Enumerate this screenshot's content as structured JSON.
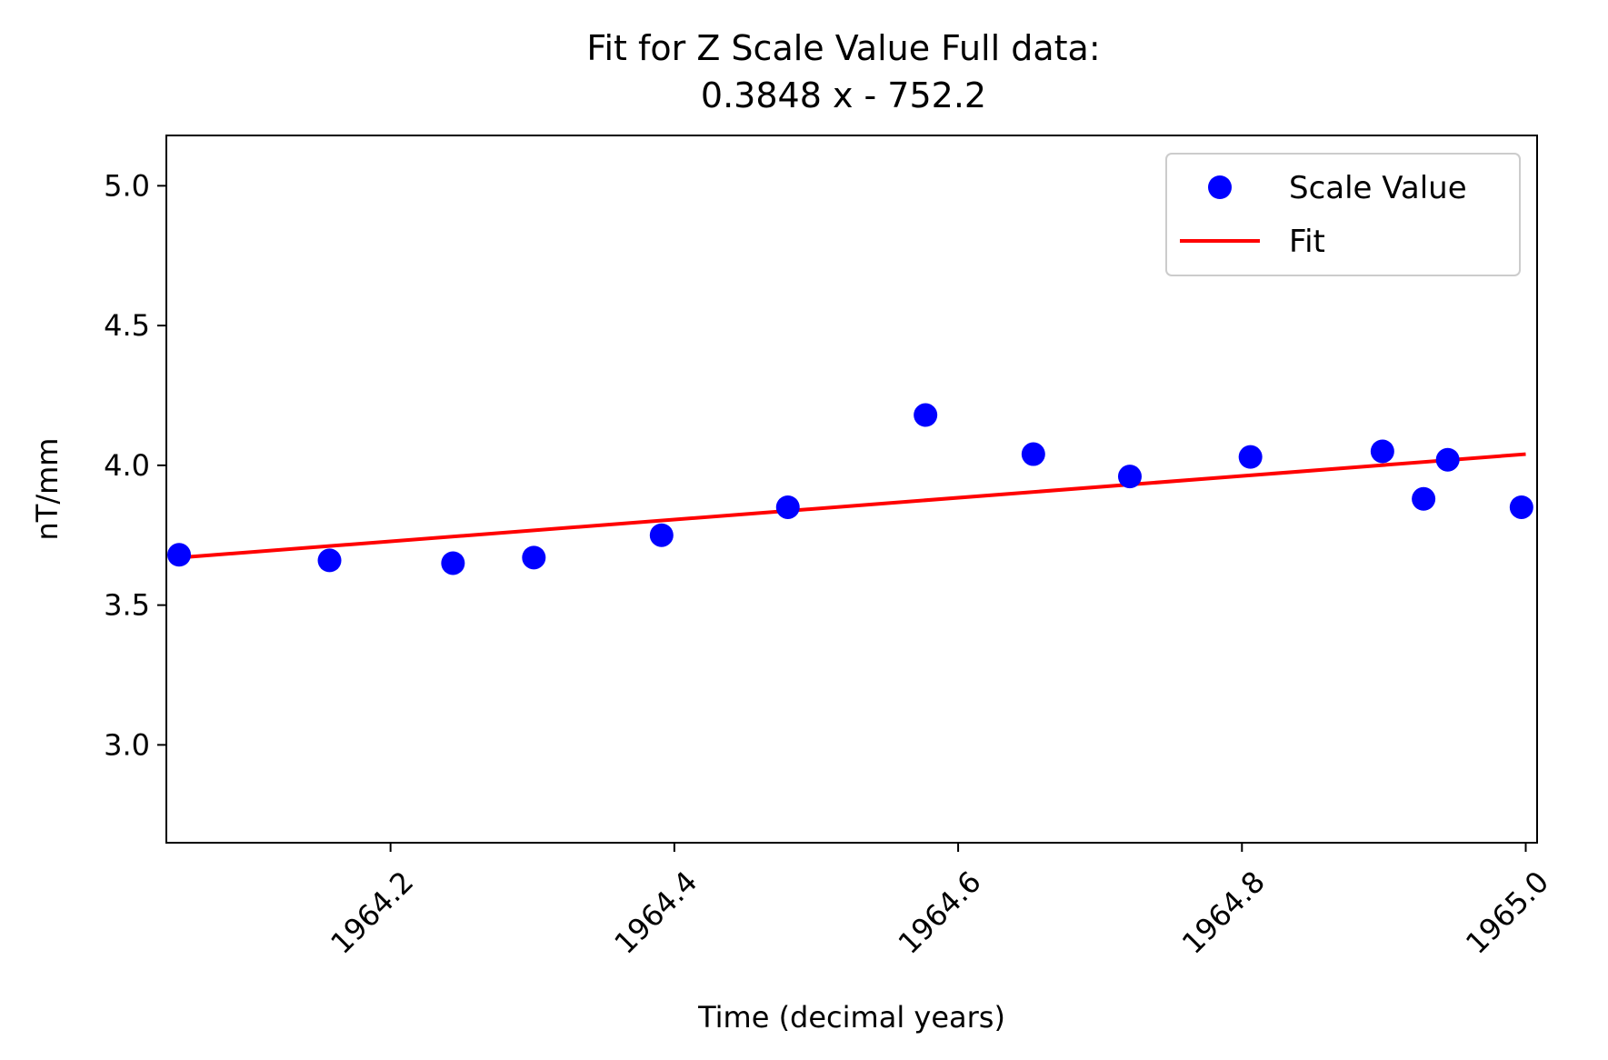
{
  "chart_data": {
    "type": "scatter",
    "title": "Fit for Z Scale Value Full data:",
    "subtitle": "0.3848 x - 752.2",
    "xlabel": "Time (decimal years)",
    "ylabel": "nT/mm",
    "xlim": [
      1964.042,
      1965.008
    ],
    "ylim": [
      2.65,
      5.18
    ],
    "xticks": [
      1964.2,
      1964.4,
      1964.6,
      1964.8,
      1965.0
    ],
    "xtick_labels": [
      "1964.2",
      "1964.4",
      "1964.6",
      "1964.8",
      "1965.0"
    ],
    "yticks": [
      3.0,
      3.5,
      4.0,
      4.5,
      5.0
    ],
    "ytick_labels": [
      "3.0",
      "3.5",
      "4.0",
      "4.5",
      "5.0"
    ],
    "grid": false,
    "legend": {
      "position": "top-right",
      "entries": [
        "Scale Value",
        "Fit"
      ]
    },
    "series": [
      {
        "name": "Scale Value",
        "kind": "scatter",
        "color": "#0000ff",
        "x": [
          1964.051,
          1964.157,
          1964.244,
          1964.301,
          1964.391,
          1964.48,
          1964.577,
          1964.653,
          1964.721,
          1964.806,
          1964.899,
          1964.928,
          1964.945,
          1964.997
        ],
        "y": [
          3.68,
          3.66,
          3.65,
          3.67,
          3.75,
          3.85,
          4.18,
          4.04,
          3.96,
          4.03,
          4.05,
          3.88,
          4.02,
          3.85
        ]
      },
      {
        "name": "Fit",
        "kind": "line",
        "color": "#ff0000",
        "x": [
          1964.051,
          1965.0
        ],
        "y": [
          3.67,
          4.04
        ]
      }
    ]
  }
}
